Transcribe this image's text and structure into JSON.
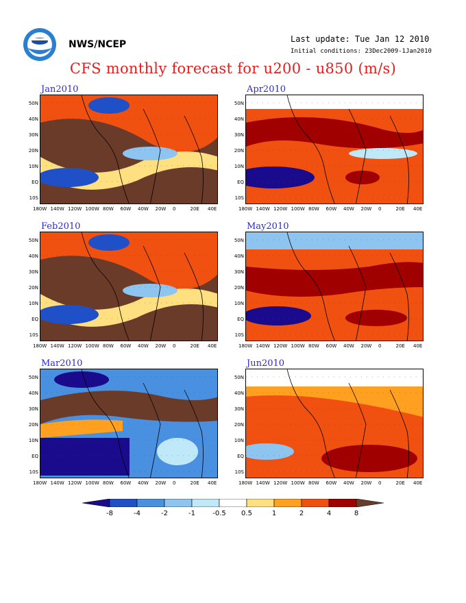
{
  "header": {
    "org": "NWS/NCEP",
    "last_update": "Last update: Tue Jan 12 2010",
    "initial_conditions": "Initial conditions: 23Dec2009-1Jan2010",
    "title": "CFS monthly forecast for u200 - u850 (m/s)"
  },
  "panels": [
    {
      "title": "Jan2010",
      "pattern": "strong-positive"
    },
    {
      "title": "Feb2010",
      "pattern": "strong-positive"
    },
    {
      "title": "Mar2010",
      "pattern": "negative-dominant"
    },
    {
      "title": "Apr2010",
      "pattern": "mixed"
    },
    {
      "title": "May2010",
      "pattern": "moderate-positive"
    },
    {
      "title": "Jun2010",
      "pattern": "weak-positive"
    }
  ],
  "lat_labels": [
    "50N",
    "40N",
    "30N",
    "20N",
    "10N",
    "EQ",
    "10S"
  ],
  "lon_labels": [
    "180W",
    "140W",
    "120W",
    "100W",
    "80W",
    "60W",
    "40W",
    "20W",
    "0",
    "20E",
    "40E"
  ],
  "colorbar": {
    "labels": [
      "-8",
      "-4",
      "-2",
      "-1",
      "-0.5",
      "0.5",
      "1",
      "2",
      "4",
      "8"
    ],
    "colors": [
      "#1a0a8c",
      "#2050c8",
      "#4a90e0",
      "#8ec4f0",
      "#bfe8f8",
      "#ffffff",
      "#ffe080",
      "#ffa020",
      "#f05010",
      "#a00000",
      "#6b3b2a"
    ]
  }
}
